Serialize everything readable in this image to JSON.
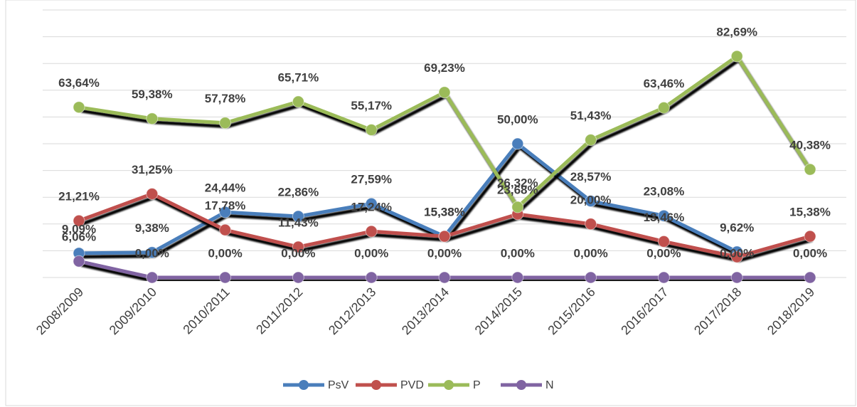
{
  "chart_data": {
    "type": "line",
    "categories": [
      "2008/2009",
      "2009/2010",
      "2010/2011",
      "2011/2012",
      "2012/2013",
      "2013/2014",
      "2014/2015",
      "2015/2016",
      "2016/2017",
      "2017/2018",
      "2018/2019"
    ],
    "ylim": [
      0,
      100
    ],
    "yticks": [
      0,
      10,
      20,
      30,
      40,
      50,
      60,
      70,
      80,
      90,
      100
    ],
    "grid": true,
    "legend": "bottom",
    "series": [
      {
        "name": "PsV",
        "color": "#4a7ebb",
        "values": [
          9.09,
          9.38,
          24.44,
          22.86,
          27.59,
          15.38,
          50.0,
          28.57,
          23.08,
          9.62,
          null
        ],
        "value_labels": [
          "9,09%",
          "9,38%",
          "24,44%",
          "22,86%",
          "27,59%",
          "15,38%",
          "50,00%",
          "28,57%",
          "23,08%",
          "9,62%",
          null
        ]
      },
      {
        "name": "PVD",
        "color": "#c0504d",
        "values": [
          21.21,
          31.25,
          17.78,
          11.43,
          17.24,
          15.38,
          23.68,
          20.0,
          13.46,
          7.69,
          15.38
        ],
        "value_labels": [
          "21,21%",
          "31,25%",
          "17,78%",
          "11,43%",
          "17,24%",
          "15,38%",
          "23,68%",
          "20,00%",
          "13,46%",
          null,
          "15,38%"
        ]
      },
      {
        "name": "P",
        "color": "#9bbb59",
        "values": [
          63.64,
          59.38,
          57.78,
          65.71,
          55.17,
          69.23,
          26.32,
          51.43,
          63.46,
          82.69,
          40.38
        ],
        "value_labels": [
          "63,64%",
          "59,38%",
          "57,78%",
          "65,71%",
          "55,17%",
          "69,23%",
          "26,32%",
          "51,43%",
          "63,46%",
          "82,69%",
          "40,38%"
        ]
      },
      {
        "name": "N",
        "color": "#8064a2",
        "values": [
          6.06,
          0,
          0,
          0,
          0,
          0,
          0,
          0,
          0,
          0,
          0
        ],
        "value_labels": [
          "6,06%",
          "0,00%",
          "0,00%",
          "0,00%",
          "0,00%",
          "0,00%",
          "0,00%",
          "0,00%",
          "0,00%",
          "0,00%",
          "0,00%"
        ]
      }
    ]
  }
}
